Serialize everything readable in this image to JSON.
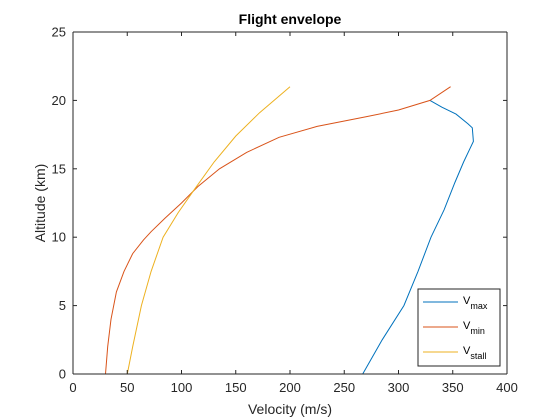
{
  "chart_data": {
    "type": "line",
    "title": "Flight envelope",
    "xlabel": "Velocity (m/s)",
    "ylabel": "Altitude (km)",
    "xlim": [
      0,
      400
    ],
    "ylim": [
      0,
      25
    ],
    "xticks": [
      "0",
      "50",
      "100",
      "150",
      "200",
      "250",
      "300",
      "350",
      "400"
    ],
    "yticks": [
      "0",
      "5",
      "10",
      "15",
      "20",
      "25"
    ],
    "grid": false,
    "legend_position": "bottom-right",
    "series": [
      {
        "name": "V",
        "subscript": "max",
        "color": "#0072BD",
        "x": [
          267,
          285,
          305,
          318,
          330,
          342,
          352,
          360,
          366,
          369,
          368,
          364,
          353,
          340,
          329
        ],
        "y": [
          0,
          2.5,
          5,
          7.5,
          10,
          12,
          14,
          15.5,
          16.5,
          17,
          18,
          18.3,
          19,
          19.5,
          20
        ]
      },
      {
        "name": "V",
        "subscript": "min",
        "color": "#D95319",
        "x": [
          30,
          32,
          35,
          40,
          47,
          55,
          65,
          72,
          85,
          100,
          115,
          135,
          160,
          190,
          225,
          270,
          300,
          329,
          348
        ],
        "y": [
          0,
          2,
          4,
          6,
          7.5,
          8.8,
          9.8,
          10.4,
          11.4,
          12.5,
          13.7,
          15,
          16.2,
          17.3,
          18.1,
          18.8,
          19.3,
          20,
          21
        ]
      },
      {
        "name": "V",
        "subscript": "stall",
        "color": "#EDB120",
        "x": [
          50,
          55,
          63,
          72,
          83,
          97,
          112,
          130,
          150,
          172,
          200
        ],
        "y": [
          0,
          2,
          5,
          7.5,
          10,
          11.8,
          13.5,
          15.5,
          17.4,
          19.1,
          21
        ]
      }
    ]
  }
}
